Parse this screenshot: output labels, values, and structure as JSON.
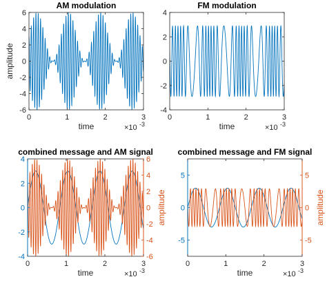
{
  "colors": {
    "blue": "#0072BD",
    "orange": "#D95319",
    "axis": "#262626"
  },
  "chart_data": [
    {
      "type": "line",
      "title": "AM modulation",
      "xlabel": "time",
      "ylabel": "amplitude",
      "x_exponent": "×10",
      "x_exponent_power": "-3",
      "xlim": [
        0,
        3
      ],
      "ylim": [
        -6,
        6
      ],
      "xticks": [
        0,
        1,
        2,
        3
      ],
      "yticks": [
        -6,
        -4,
        -2,
        0,
        2,
        4,
        6
      ],
      "series": [
        {
          "color": "blue",
          "function": "am_wave",
          "params": {
            "carrier_hz": 16500,
            "message_hz": 1200,
            "amplitude": 3,
            "index": 1
          }
        }
      ]
    },
    {
      "type": "line",
      "title": "FM modulation",
      "xlabel": "time",
      "ylabel": "",
      "x_exponent": "×10",
      "x_exponent_power": "-3",
      "xlim": [
        0,
        3
      ],
      "ylim": [
        -4,
        4
      ],
      "xticks": [
        0,
        1,
        2,
        3
      ],
      "yticks": [
        -4,
        -2,
        0,
        2,
        4
      ],
      "series": [
        {
          "color": "blue",
          "function": "fm_wave",
          "params": {
            "carrier_hz": 9000,
            "message_hz": 1200,
            "amplitude": 2.9,
            "index": 5
          }
        }
      ]
    },
    {
      "type": "line",
      "title": "combined message and AM signal",
      "xlabel": "time",
      "ylabel_right": "amplitude",
      "x_exponent": "×10",
      "x_exponent_power": "-3",
      "xlim": [
        0,
        3
      ],
      "ylim_left": [
        -4,
        4
      ],
      "yticks_left": [
        -4,
        -2,
        0,
        2,
        4
      ],
      "ylim_right": [
        -6,
        6
      ],
      "yticks_right": [
        -6,
        -4,
        -2,
        0,
        2,
        4,
        6
      ],
      "series": [
        {
          "color": "blue",
          "axis": "left",
          "function": "sine",
          "params": {
            "message_hz": 1200,
            "amplitude": 3
          }
        },
        {
          "color": "orange",
          "axis": "right",
          "function": "am_wave",
          "params": {
            "carrier_hz": 16500,
            "message_hz": 1200,
            "amplitude": 3,
            "index": 1
          }
        }
      ]
    },
    {
      "type": "line",
      "title": "combined message and FM signal",
      "xlabel": "time",
      "ylabel_right": "amplitude",
      "x_exponent": "×10",
      "x_exponent_power": "-3",
      "xlim": [
        0,
        3
      ],
      "ylim_left": [
        -7.5,
        7.5
      ],
      "yticks_left": [
        -5,
        0,
        5
      ],
      "ylim_right": [
        -7.5,
        7.5
      ],
      "yticks_right": [
        -5,
        0,
        5
      ],
      "series": [
        {
          "color": "blue",
          "axis": "left",
          "function": "sine",
          "params": {
            "message_hz": 1200,
            "amplitude": 3
          }
        },
        {
          "color": "orange",
          "axis": "right",
          "function": "fm_wave",
          "params": {
            "carrier_hz": 9000,
            "message_hz": 1200,
            "amplitude": 2.9,
            "index": 5
          }
        }
      ]
    }
  ]
}
